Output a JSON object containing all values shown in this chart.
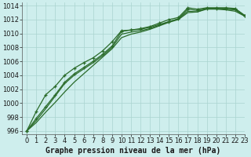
{
  "title": "Graphe pression niveau de la mer (hPa)",
  "background_color": "#ceeeed",
  "grid_color": "#aad4d0",
  "line_color": "#2a6b2a",
  "xlim": [
    -0.5,
    23
  ],
  "ylim": [
    995.5,
    1014.5
  ],
  "yticks": [
    996,
    998,
    1000,
    1002,
    1004,
    1006,
    1008,
    1010,
    1012,
    1014
  ],
  "xticks": [
    0,
    1,
    2,
    3,
    4,
    5,
    6,
    7,
    8,
    9,
    10,
    11,
    12,
    13,
    14,
    15,
    16,
    17,
    18,
    19,
    20,
    21,
    22,
    23
  ],
  "series_with_markers": [
    [
      996.0,
      997.8,
      999.5,
      1001.2,
      1003.0,
      1004.2,
      1005.1,
      1006.0,
      1007.0,
      1008.2,
      1010.3,
      1010.5,
      1010.6,
      1010.9,
      1011.3,
      1011.7,
      1012.1,
      1013.5,
      1013.3,
      1013.6,
      1013.6,
      1013.6,
      1013.5,
      1012.6
    ],
    [
      996.0,
      998.8,
      1001.2,
      1002.4,
      1004.0,
      1005.0,
      1005.8,
      1006.5,
      1007.5,
      1008.8,
      1010.4,
      1010.5,
      1010.7,
      1011.0,
      1011.5,
      1012.0,
      1012.3,
      1013.7,
      1013.5,
      1013.7,
      1013.7,
      1013.7,
      1013.6,
      1012.6
    ]
  ],
  "series_no_markers": [
    [
      996.0,
      997.2,
      998.7,
      1000.1,
      1001.6,
      1003.0,
      1004.2,
      1005.4,
      1006.6,
      1007.8,
      1009.4,
      1009.9,
      1010.2,
      1010.6,
      1011.1,
      1011.6,
      1012.0,
      1013.0,
      1013.1,
      1013.5,
      1013.5,
      1013.4,
      1013.2,
      1012.5
    ],
    [
      996.0,
      997.5,
      999.2,
      1001.0,
      1002.8,
      1004.0,
      1004.9,
      1005.8,
      1006.8,
      1008.0,
      1009.9,
      1010.2,
      1010.4,
      1010.7,
      1011.2,
      1011.7,
      1012.1,
      1013.2,
      1013.1,
      1013.6,
      1013.6,
      1013.5,
      1013.4,
      1012.5
    ]
  ],
  "marker": "+",
  "marker_size": 3.5,
  "marker_edge_width": 0.9,
  "line_width": 0.9,
  "xlabel_fontsize": 7,
  "tick_fontsize": 6
}
